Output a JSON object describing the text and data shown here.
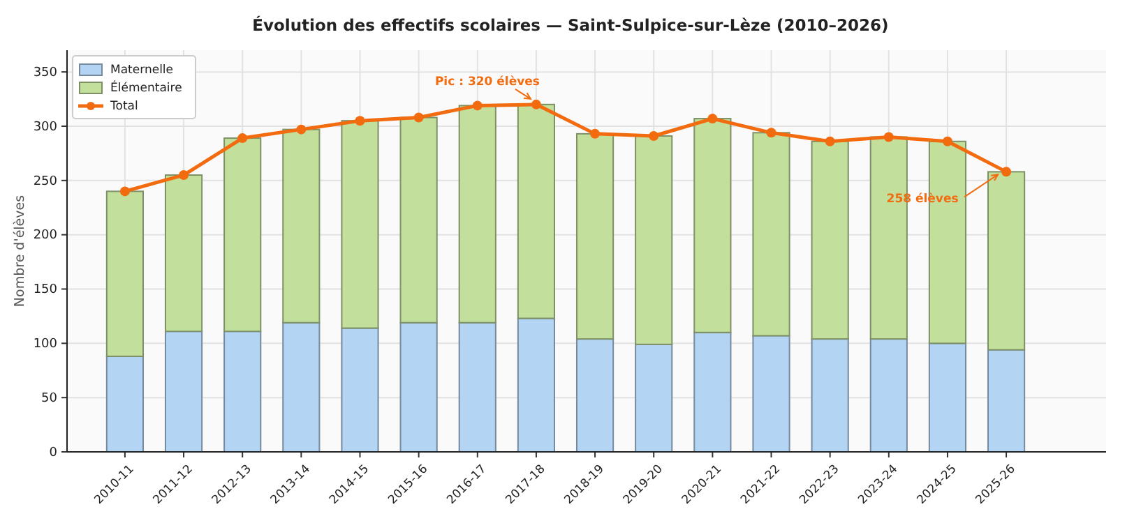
{
  "chart_data": {
    "type": "bar",
    "title": "Évolution des effectifs scolaires — Saint-Sulpice-sur-Lèze (2010–2026)",
    "ylabel": "Nombre d'élèves",
    "categories": [
      "2010-11",
      "2011-12",
      "2012-13",
      "2013-14",
      "2014-15",
      "2015-16",
      "2016-17",
      "2017-18",
      "2018-19",
      "2019-20",
      "2020-21",
      "2021-22",
      "2022-23",
      "2023-24",
      "2024-25",
      "2025-26"
    ],
    "stacked": true,
    "series": [
      {
        "name": "Maternelle",
        "color": "#b3d4f2",
        "values": [
          88,
          111,
          111,
          119,
          114,
          119,
          119,
          123,
          104,
          99,
          110,
          107,
          104,
          104,
          100,
          94
        ]
      },
      {
        "name": "Élémentaire",
        "color": "#c2df9c",
        "values": [
          152,
          144,
          178,
          178,
          191,
          189,
          200,
          197,
          189,
          192,
          197,
          187,
          182,
          186,
          186,
          164
        ]
      },
      {
        "name": "Total",
        "type": "line",
        "color": "#f26b0f",
        "marker": "circle",
        "values": [
          240,
          255,
          289,
          297,
          305,
          308,
          319,
          320,
          293,
          291,
          307,
          294,
          286,
          290,
          286,
          258
        ]
      }
    ],
    "annotations": [
      {
        "text": "Pic : 320 élèves",
        "x": "2017-18",
        "y": 320
      },
      {
        "text": "258 élèves",
        "x": "2025-26",
        "y": 258
      }
    ],
    "ylim": [
      0,
      370
    ],
    "yticks": [
      0,
      50,
      100,
      150,
      200,
      250,
      300,
      350
    ],
    "grid": true,
    "legend": "top left"
  }
}
